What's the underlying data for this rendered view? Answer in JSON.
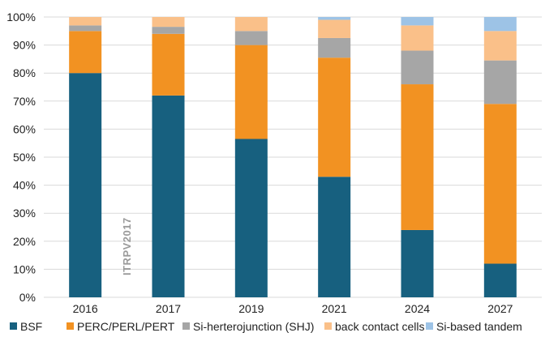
{
  "chart_data": {
    "type": "bar",
    "stacked": true,
    "categories": [
      "2016",
      "2017",
      "2019",
      "2021",
      "2024",
      "2027"
    ],
    "series": [
      {
        "name": "BSF",
        "color": "#17607f",
        "values": [
          80,
          72,
          56.5,
          43,
          24,
          12
        ]
      },
      {
        "name": "PERC/PERL/PERT",
        "color": "#f29222",
        "values": [
          15,
          22,
          33.5,
          42.5,
          52,
          57
        ]
      },
      {
        "name": "Si-herterojunction (SHJ)",
        "color": "#a6a6a6",
        "values": [
          2,
          2.5,
          5,
          7,
          12,
          15.5
        ]
      },
      {
        "name": "back contact cells",
        "color": "#fac089",
        "values": [
          3,
          3.5,
          5,
          6.5,
          9,
          10.5
        ]
      },
      {
        "name": "Si-based tandem",
        "color": "#9dc3e6",
        "values": [
          0,
          0,
          0,
          1,
          3,
          5
        ]
      }
    ],
    "yticks": [
      "0%",
      "10%",
      "20%",
      "30%",
      "40%",
      "50%",
      "60%",
      "70%",
      "80%",
      "90%",
      "100%"
    ],
    "ylim": [
      0,
      100
    ],
    "legend_position": "bottom",
    "annotation": "ITRPV2017"
  }
}
